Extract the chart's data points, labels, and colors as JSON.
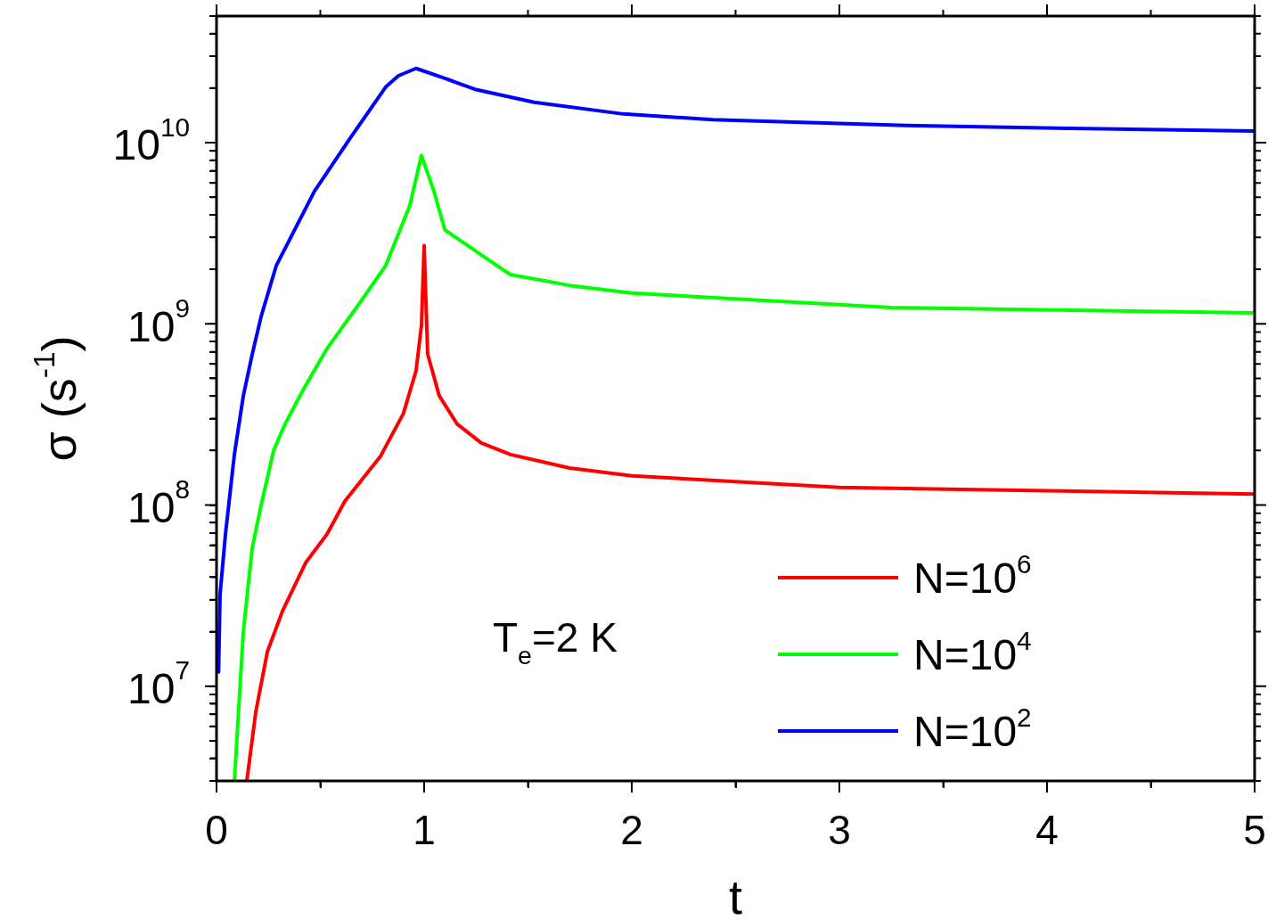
{
  "chart_data": {
    "type": "line",
    "xlabel": "t",
    "ylabel": "σ (s$^{-1}$)",
    "log": "y",
    "grid": false,
    "legend": "bottom right",
    "line_style": "solid",
    "marker": "none",
    "xlim": [
      0,
      5
    ],
    "xticks": [
      0,
      {
        "value": 0.5,
        "label": null
      },
      1,
      {
        "value": 1.5,
        "label": null
      },
      2,
      {
        "value": 2.5,
        "label": null
      },
      3,
      {
        "value": 3.5,
        "label": null
      },
      4,
      {
        "value": 4.5,
        "label": null
      },
      5
    ],
    "ylim": [
      3000000,
      50000000000
    ],
    "yticks": [
      {
        "value": 3000000,
        "label": null
      },
      {
        "value": 4000000,
        "label": null
      },
      {
        "value": 5000000,
        "label": null
      },
      {
        "value": 6000000,
        "label": null
      },
      {
        "value": 7000000,
        "label": null
      },
      {
        "value": 8000000,
        "label": null
      },
      {
        "value": 9000000,
        "label": null
      },
      {
        "value": 10000000,
        "label": "10$^{7}$"
      },
      {
        "value": 20000000,
        "label": null
      },
      {
        "value": 30000000,
        "label": null
      },
      {
        "value": 40000000,
        "label": null
      },
      {
        "value": 50000000,
        "label": null
      },
      {
        "value": 60000000,
        "label": null
      },
      {
        "value": 70000000,
        "label": null
      },
      {
        "value": 80000000,
        "label": null
      },
      {
        "value": 90000000,
        "label": null
      },
      {
        "value": 100000000,
        "label": "10$^{8}$"
      },
      {
        "value": 200000000,
        "label": null
      },
      {
        "value": 300000000,
        "label": null
      },
      {
        "value": 400000000,
        "label": null
      },
      {
        "value": 500000000,
        "label": null
      },
      {
        "value": 600000000,
        "label": null
      },
      {
        "value": 700000000,
        "label": null
      },
      {
        "value": 800000000,
        "label": null
      },
      {
        "value": 900000000,
        "label": null
      },
      {
        "value": 1000000000,
        "label": "10$^{9}$"
      },
      {
        "value": 2000000000,
        "label": null
      },
      {
        "value": 3000000000,
        "label": null
      },
      {
        "value": 4000000000,
        "label": null
      },
      {
        "value": 5000000000,
        "label": null
      },
      {
        "value": 6000000000,
        "label": null
      },
      {
        "value": 7000000000,
        "label": null
      },
      {
        "value": 8000000000,
        "label": null
      },
      {
        "value": 9000000000,
        "label": null
      },
      {
        "value": 10000000000,
        "label": "10$^{10}$"
      },
      {
        "value": 20000000000,
        "label": null
      },
      {
        "value": 30000000000,
        "label": null
      },
      {
        "value": 40000000000,
        "label": null
      },
      {
        "value": 50000000000,
        "label": null
      }
    ],
    "annotations": [
      "T$_{e}$=2 K"
    ],
    "series": [
      {
        "name": "N=10$^{6}$",
        "color": "#ff0000",
        "x": [
          0.146,
          0.189,
          0.245,
          0.318,
          0.429,
          0.532,
          0.618,
          0.79,
          0.9,
          0.961,
          0.987,
          1.0,
          1.017,
          1.073,
          1.159,
          1.275,
          1.416,
          1.7,
          2,
          3,
          5
        ],
        "values": [
          3000000,
          7200000,
          15500000,
          26000000,
          48000000,
          69000000,
          105000000,
          186000000,
          320000000,
          550000000,
          980000000,
          2700000000,
          680000000,
          400000000,
          280000000,
          220000000,
          190000000,
          160000000,
          145000000,
          125000000,
          115000000
        ]
      },
      {
        "name": "N=10$^{4}$",
        "color": "#00ff00",
        "x": [
          0.086,
          0.129,
          0.172,
          0.215,
          0.275,
          0.33,
          0.416,
          0.532,
          0.674,
          0.815,
          0.931,
          0.987,
          1.047,
          1.1,
          1.35,
          1.416,
          1.7,
          2,
          3.25,
          5
        ],
        "values": [
          3000000,
          20000000,
          58000000,
          100000000,
          200000000,
          280000000,
          430000000,
          730000000,
          1230000000,
          2100000000,
          4500000000,
          8500000000,
          5400000000,
          3300000000,
          2100000000,
          1870000000,
          1630000000,
          1480000000,
          1230000000,
          1150000000
        ]
      },
      {
        "name": "N=10$^{2}$",
        "color": "#0000ff",
        "x": [
          0.01,
          0.017,
          0.043,
          0.086,
          0.129,
          0.172,
          0.215,
          0.288,
          0.472,
          0.644,
          0.815,
          0.876,
          0.961,
          1.103,
          1.245,
          1.53,
          1.96,
          2.39,
          3.25,
          4.11,
          5
        ],
        "values": [
          12000000,
          32000000,
          69000000,
          190000000,
          400000000,
          680000000,
          1100000000,
          2100000000,
          5400000000,
          10600000000,
          20300000000,
          23400000000,
          25700000000,
          22600000000,
          19700000000,
          16700000000,
          14400000000,
          13400000000,
          12500000000,
          12000000000,
          11600000000
        ]
      }
    ]
  }
}
